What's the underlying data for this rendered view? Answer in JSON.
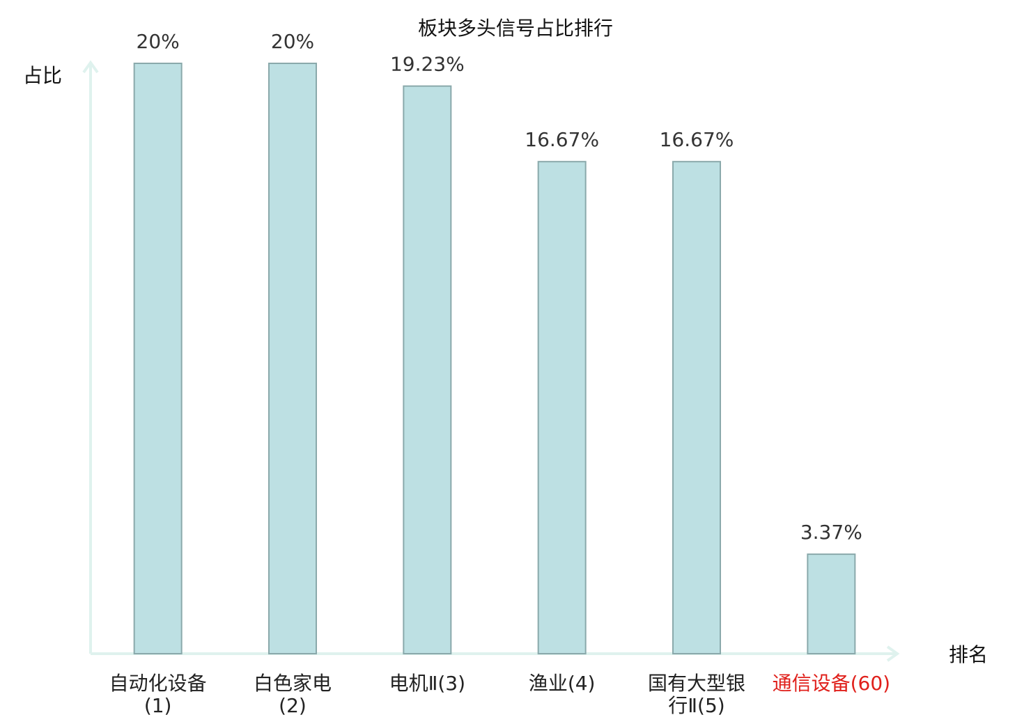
{
  "chart_data": {
    "type": "bar",
    "title": "板块多头信号占比排行",
    "y_label": "占比",
    "x_label": "排名",
    "categories": [
      "自动化设备(1)",
      "白色家电(2)",
      "电机Ⅱ(3)",
      "渔业(4)",
      "国有大型银行Ⅱ(5)",
      "通信设备(60)"
    ],
    "category_label_colors": [
      "#222222",
      "#222222",
      "#222222",
      "#222222",
      "#222222",
      "#e0201b"
    ],
    "values": [
      20,
      20,
      19.23,
      16.67,
      16.67,
      3.37
    ],
    "value_labels": [
      "20%",
      "20%",
      "19.23%",
      "16.67%",
      "16.67%",
      "3.37%"
    ],
    "color": "#bde0e3",
    "edge_color": "#8aa9ab",
    "ylim": [
      0,
      20
    ]
  }
}
